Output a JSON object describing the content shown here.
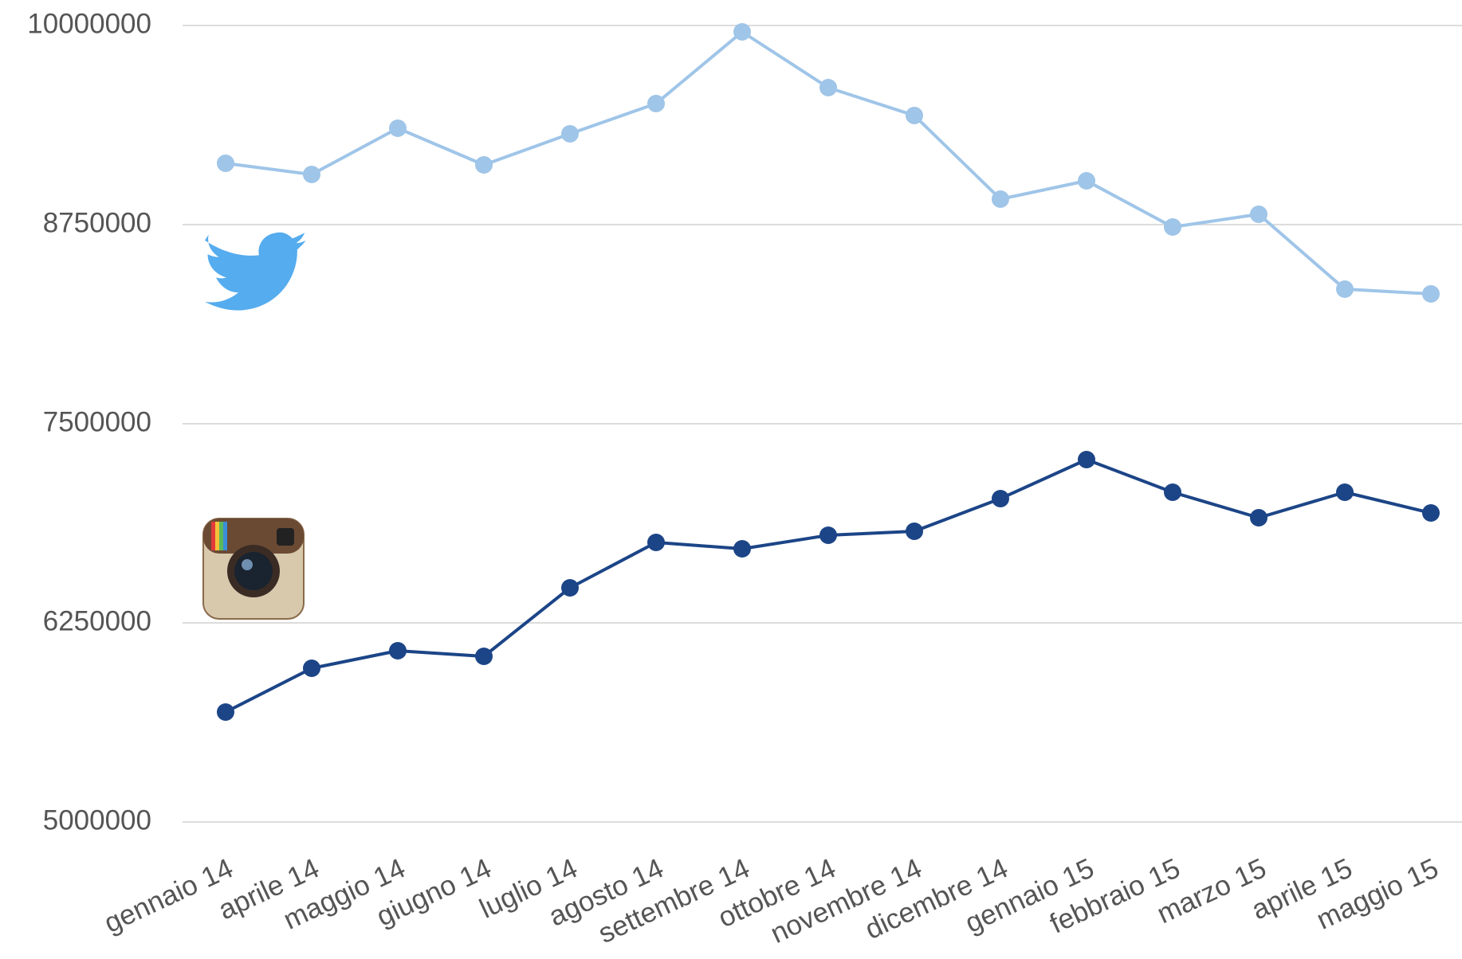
{
  "chart_data": {
    "type": "line",
    "categories": [
      "gennaio 14",
      "aprile 14",
      "maggio 14",
      "giugno 14",
      "luglio 14",
      "agosto 14",
      "settembre 14",
      "ottobre 14",
      "novembre 14",
      "dicembre 14",
      "gennaio 15",
      "febbraio 15",
      "marzo 15",
      "aprile 15",
      "maggio 15"
    ],
    "series": [
      {
        "color": "#9fc5e8",
        "values": [
          9135000,
          9065000,
          9355000,
          9125000,
          9320000,
          9510000,
          9960000,
          9610000,
          9435000,
          8910000,
          9025000,
          8735000,
          8815000,
          8345000,
          8315000
        ]
      },
      {
        "color": "#1c4587",
        "values": [
          5690000,
          5965000,
          6075000,
          6040000,
          6470000,
          6755000,
          6715000,
          6800000,
          6825000,
          7030000,
          7275000,
          7070000,
          6910000,
          7070000,
          6940000
        ]
      }
    ],
    "ylim": [
      5000000,
      10000000
    ],
    "yticks": [
      5000000,
      6250000,
      7500000,
      8750000,
      10000000
    ],
    "grid": true
  }
}
